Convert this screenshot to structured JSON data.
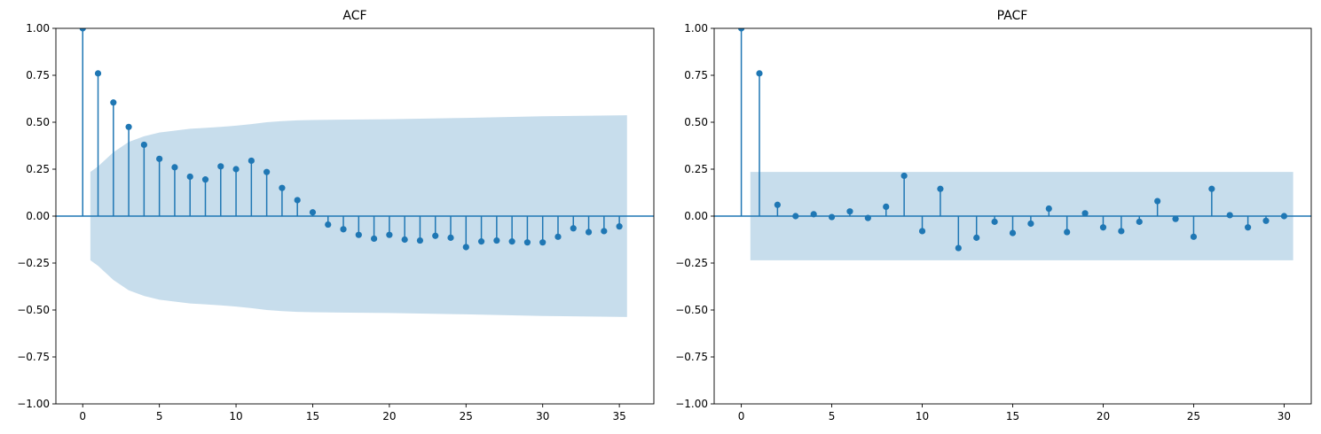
{
  "style": {
    "stem_color": "#1f77b4",
    "band_color": "#1f77b4",
    "band_opacity": 0.25,
    "frame_color": "#000000"
  },
  "chart_data": [
    {
      "type": "stem",
      "title": "ACF",
      "xlabel": "",
      "ylabel": "",
      "xlim": [
        -1.75,
        37.25
      ],
      "ylim": [
        -1.0,
        1.0
      ],
      "xticks": [
        0,
        5,
        10,
        15,
        20,
        25,
        30,
        35
      ],
      "yticks": [
        -1.0,
        -0.75,
        -0.5,
        -0.25,
        0.0,
        0.25,
        0.5,
        0.75,
        1.0
      ],
      "ytick_labels": [
        "−1.00",
        "−0.75",
        "−0.50",
        "−0.25",
        "0.00",
        "0.25",
        "0.50",
        "0.75",
        "1.00"
      ],
      "grid": false,
      "lags": [
        0,
        1,
        2,
        3,
        4,
        5,
        6,
        7,
        8,
        9,
        10,
        11,
        12,
        13,
        14,
        15,
        16,
        17,
        18,
        19,
        20,
        21,
        22,
        23,
        24,
        25,
        26,
        27,
        28,
        29,
        30,
        31,
        32,
        33,
        34,
        35
      ],
      "values": [
        1.0,
        0.76,
        0.605,
        0.475,
        0.38,
        0.305,
        0.26,
        0.21,
        0.195,
        0.265,
        0.25,
        0.295,
        0.235,
        0.15,
        0.085,
        0.02,
        -0.045,
        -0.07,
        -0.1,
        -0.12,
        -0.1,
        -0.125,
        -0.13,
        -0.105,
        -0.115,
        -0.165,
        -0.135,
        -0.13,
        -0.135,
        -0.14,
        -0.14,
        -0.11,
        -0.065,
        -0.085,
        -0.08,
        -0.055
      ],
      "confidence_band": {
        "x": [
          0.5,
          1.0,
          2.0,
          3.0,
          4.0,
          5.0,
          6.0,
          7.0,
          8.0,
          9.0,
          10.0,
          11.0,
          12.0,
          13.0,
          14.0,
          15.0,
          20.0,
          25.0,
          30.0,
          35.5
        ],
        "upper": [
          0.235,
          0.265,
          0.34,
          0.395,
          0.425,
          0.445,
          0.455,
          0.465,
          0.47,
          0.475,
          0.482,
          0.49,
          0.5,
          0.506,
          0.51,
          0.512,
          0.516,
          0.523,
          0.532,
          0.537
        ],
        "lower": [
          -0.235,
          -0.265,
          -0.34,
          -0.395,
          -0.425,
          -0.445,
          -0.455,
          -0.465,
          -0.47,
          -0.475,
          -0.482,
          -0.49,
          -0.5,
          -0.506,
          -0.51,
          -0.512,
          -0.516,
          -0.523,
          -0.532,
          -0.537
        ]
      }
    },
    {
      "type": "stem",
      "title": "PACF",
      "xlabel": "",
      "ylabel": "",
      "xlim": [
        -1.5,
        31.5
      ],
      "ylim": [
        -1.0,
        1.0
      ],
      "xticks": [
        0,
        5,
        10,
        15,
        20,
        25,
        30
      ],
      "yticks": [
        -1.0,
        -0.75,
        -0.5,
        -0.25,
        0.0,
        0.25,
        0.5,
        0.75,
        1.0
      ],
      "ytick_labels": [
        "−1.00",
        "−0.75",
        "−0.50",
        "−0.25",
        "0.00",
        "0.25",
        "0.50",
        "0.75",
        "1.00"
      ],
      "grid": false,
      "lags": [
        0,
        1,
        2,
        3,
        4,
        5,
        6,
        7,
        8,
        9,
        10,
        11,
        12,
        13,
        14,
        15,
        16,
        17,
        18,
        19,
        20,
        21,
        22,
        23,
        24,
        25,
        26,
        27,
        28,
        29,
        30
      ],
      "values": [
        1.0,
        0.76,
        0.06,
        0.0,
        0.01,
        -0.005,
        0.025,
        -0.01,
        0.05,
        0.215,
        -0.08,
        0.145,
        -0.17,
        -0.115,
        -0.03,
        -0.09,
        -0.04,
        0.04,
        -0.085,
        0.015,
        -0.06,
        -0.08,
        -0.03,
        0.08,
        -0.015,
        -0.11,
        0.145,
        0.005,
        -0.06,
        -0.025,
        0.0
      ],
      "confidence_band": {
        "x": [
          0.5,
          30.5
        ],
        "upper": [
          0.235,
          0.235
        ],
        "lower": [
          -0.235,
          -0.235
        ]
      }
    }
  ]
}
